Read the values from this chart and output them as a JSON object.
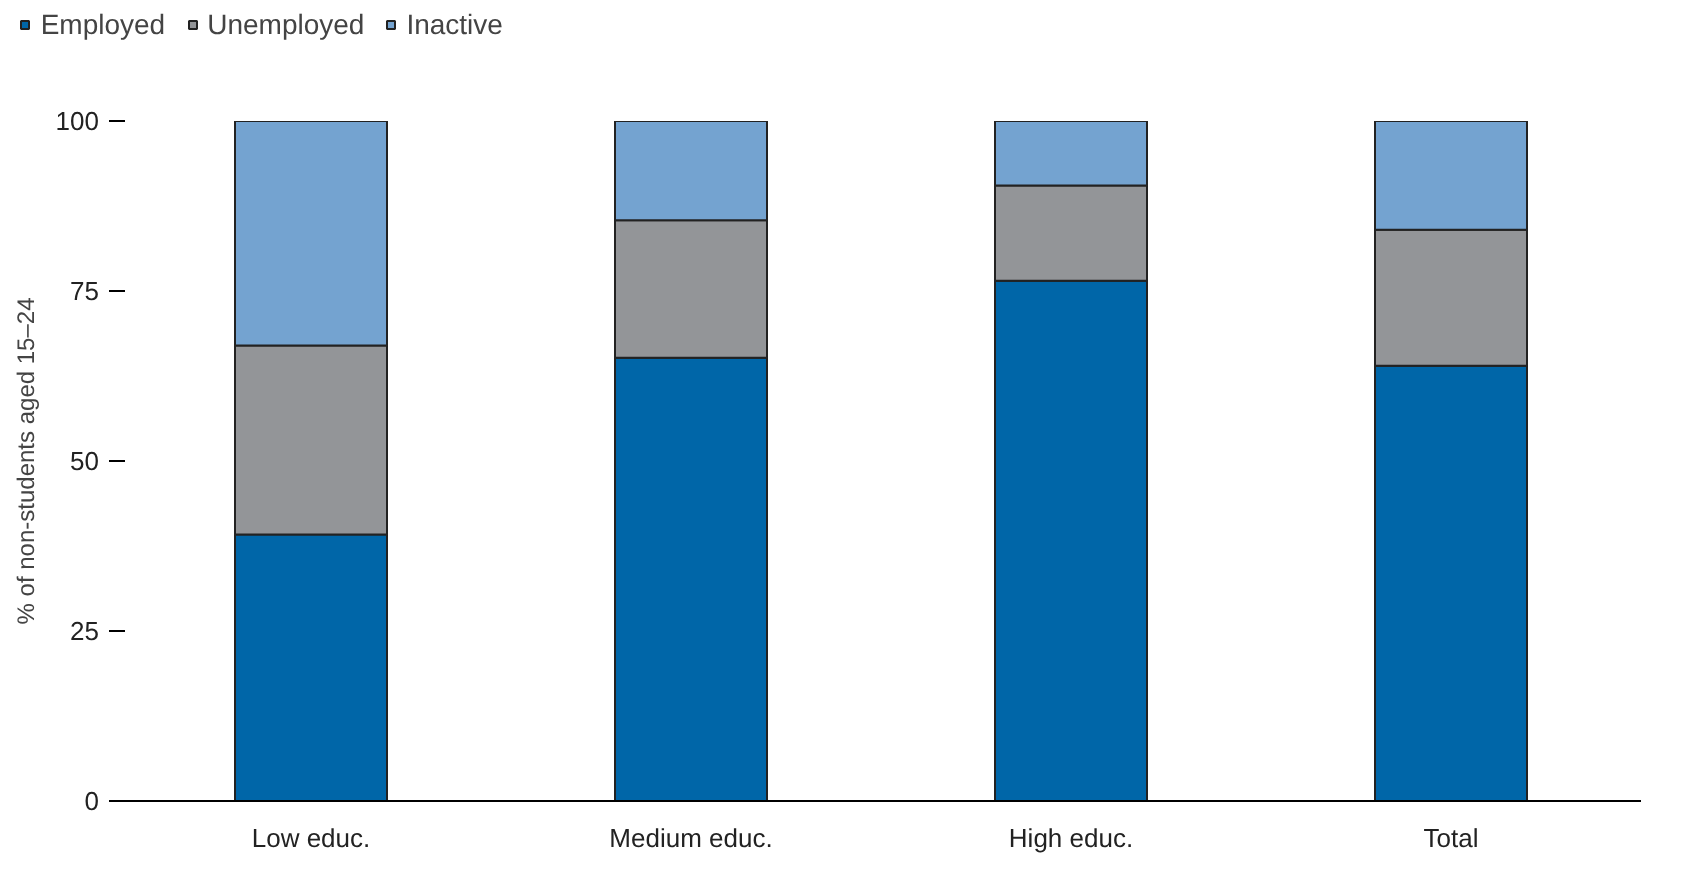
{
  "chart_data": {
    "type": "bar",
    "stacked": true,
    "ylabel": "% of non-students aged 15–24",
    "categories": [
      "Low educ.",
      "Medium educ.",
      "High educ.",
      "Total"
    ],
    "series": [
      {
        "name": "Employed",
        "color": "#0066a8",
        "values": [
          39.2,
          65.2,
          76.5,
          64.0
        ]
      },
      {
        "name": "Unemployed",
        "color": "#939598",
        "values": [
          27.8,
          20.2,
          14.0,
          20.0
        ]
      },
      {
        "name": "Inactive",
        "color": "#74a3d0",
        "values": [
          33.0,
          14.6,
          9.5,
          16.0
        ]
      }
    ],
    "ylim": [
      0,
      100
    ],
    "yticks": [
      0,
      25,
      50,
      75,
      100
    ],
    "grid": false,
    "legend": "top left"
  }
}
